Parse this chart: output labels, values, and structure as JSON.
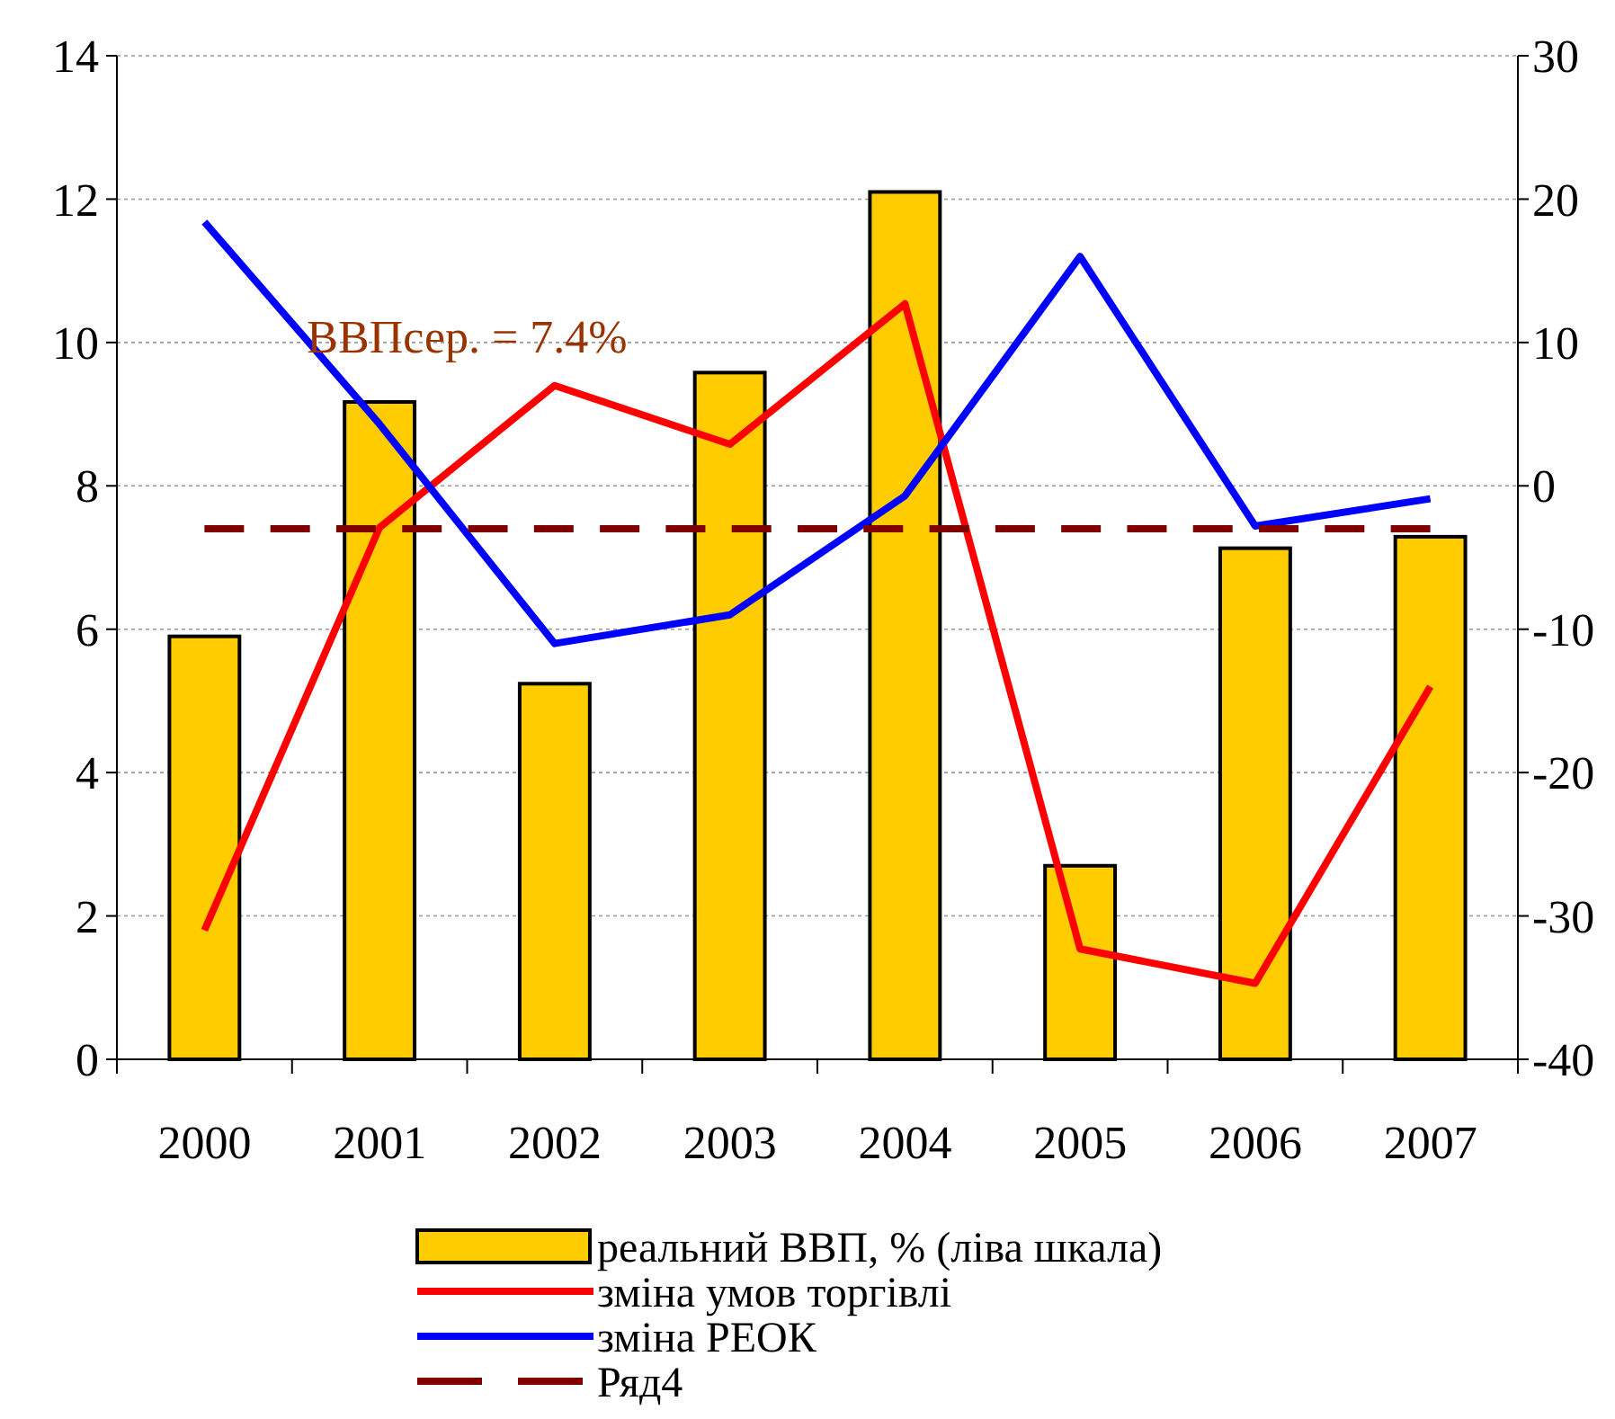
{
  "chart_data": {
    "type": "bar",
    "categories": [
      "2000",
      "2001",
      "2002",
      "2003",
      "2004",
      "2005",
      "2006",
      "2007"
    ],
    "series": [
      {
        "name": "реальний ВВП, % (ліва шкала)",
        "color": "#ffcc00",
        "values": [
          5.9,
          9.17,
          5.24,
          9.58,
          12.1,
          2.7,
          7.13,
          7.29
        ]
      },
      {
        "name": "зміна умов торгівлі",
        "type": "line",
        "axis": "y2",
        "color": "#ff0000",
        "values": [
          -31,
          -2.9,
          7.0,
          2.9,
          12.7,
          -32.3,
          -34.7,
          -14.0
        ]
      },
      {
        "name": "зміна РЕОК",
        "type": "line",
        "axis": "y2",
        "color": "#0000ff",
        "values": [
          18.4,
          4.3,
          -11.0,
          -9.0,
          -0.7,
          16.0,
          -2.8,
          -0.9
        ]
      },
      {
        "name": "Ряд4",
        "type": "line",
        "line_style": "dashed",
        "color": "#800000",
        "values": [
          7.4,
          7.4,
          7.4,
          7.4,
          7.4,
          7.4,
          7.4,
          7.4
        ]
      }
    ],
    "ylim": [
      0,
      14
    ],
    "yticks": [
      0,
      2,
      4,
      6,
      8,
      10,
      12,
      14
    ],
    "y2lim": [
      -40,
      30
    ],
    "y2ticks": [
      -40,
      -30,
      -20,
      -10,
      0,
      10,
      20,
      30
    ],
    "grid": "y",
    "legend": "bottom",
    "marker": "none",
    "annotations": [
      "ВВПсер. = 7.4%"
    ]
  }
}
